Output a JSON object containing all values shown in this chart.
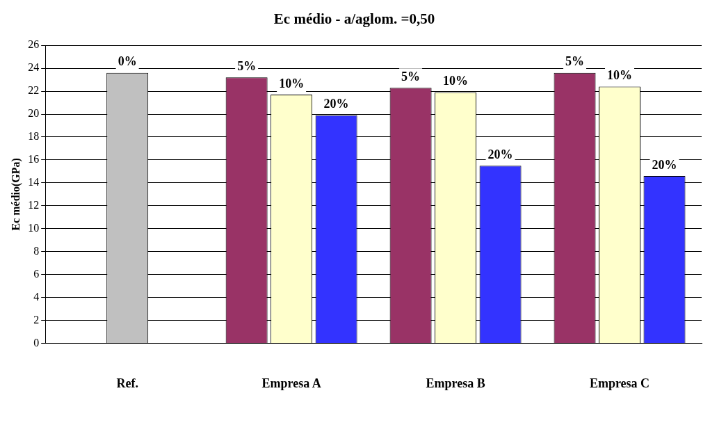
{
  "chart_data": {
    "type": "bar",
    "title": "Ec médio - a/aglom. =0,50",
    "ylabel": "Ec médio(GPa)",
    "categories": [
      "Ref.",
      "Empresa A",
      "Empresa B",
      "Empresa C"
    ],
    "series": [
      {
        "name": "0%",
        "color": "#c0c0c0",
        "values": [
          23.6,
          null,
          null,
          null
        ]
      },
      {
        "name": "5%",
        "color": "#993366",
        "values": [
          null,
          23.2,
          22.3,
          23.6
        ]
      },
      {
        "name": "10%",
        "color": "#ffffcc",
        "values": [
          null,
          21.7,
          21.9,
          22.4
        ]
      },
      {
        "name": "20%",
        "color": "#3333ff",
        "values": [
          null,
          19.9,
          15.5,
          14.6
        ]
      }
    ],
    "ylim": [
      0,
      26
    ],
    "yticks": [
      0,
      2,
      4,
      6,
      8,
      10,
      12,
      14,
      16,
      18,
      20,
      22,
      24,
      26
    ],
    "grid": "y",
    "legend": false
  }
}
